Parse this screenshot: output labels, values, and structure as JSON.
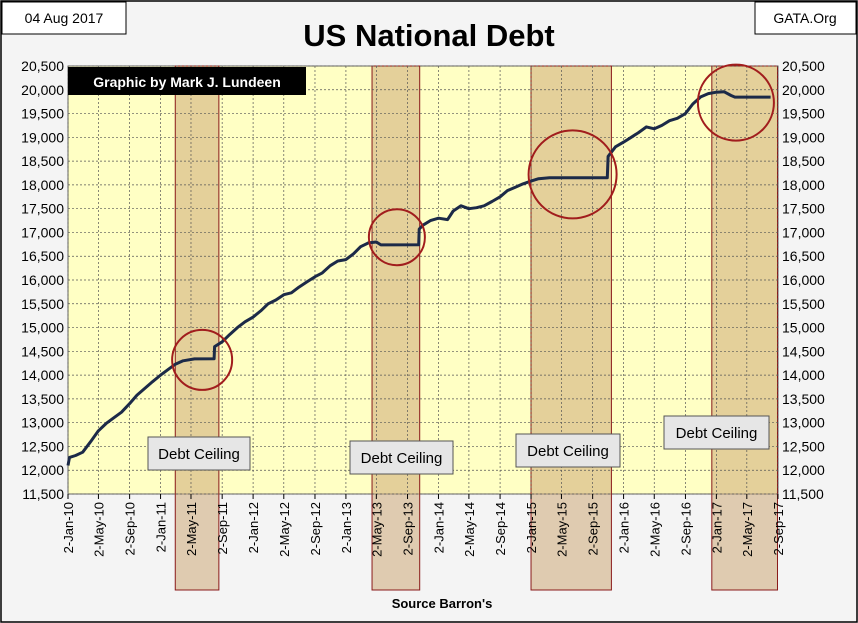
{
  "chart_data": {
    "type": "line",
    "title": "US National Debt",
    "date_label": "04 Aug 2017",
    "source_label": "GATA.Org",
    "credit": "Graphic by Mark J. Lundeen",
    "xlabel": "Source Barron's",
    "ylabel": "",
    "ylim": [
      11500,
      20500
    ],
    "yticks": [
      11500,
      12000,
      12500,
      13000,
      13500,
      14000,
      14500,
      15000,
      15500,
      16000,
      16500,
      17000,
      17500,
      18000,
      18500,
      19000,
      19500,
      20000,
      20500
    ],
    "ytick_labels": [
      "11,500",
      "12,000",
      "12,500",
      "13,000",
      "13,500",
      "14,000",
      "14,500",
      "15,000",
      "15,500",
      "16,000",
      "16,500",
      "17,000",
      "17,500",
      "18,000",
      "18,500",
      "19,000",
      "19,500",
      "20,000",
      "20,500"
    ],
    "xlim": [
      "2010-01-02",
      "2017-09-02"
    ],
    "xticks": [
      "2010-01-02",
      "2010-05-02",
      "2010-09-02",
      "2011-01-02",
      "2011-05-02",
      "2011-09-02",
      "2012-01-02",
      "2012-05-02",
      "2012-09-02",
      "2013-01-02",
      "2013-05-02",
      "2013-09-02",
      "2014-01-02",
      "2014-05-02",
      "2014-09-02",
      "2015-01-02",
      "2015-05-02",
      "2015-09-02",
      "2016-01-02",
      "2016-05-02",
      "2016-09-02",
      "2017-01-02",
      "2017-05-02",
      "2017-09-02"
    ],
    "xtick_labels": [
      "2-Jan-10",
      "2-May-10",
      "2-Sep-10",
      "2-Jan-11",
      "2-May-11",
      "2-Sep-11",
      "2-Jan-12",
      "2-May-12",
      "2-Sep-12",
      "2-Jan-13",
      "2-May-13",
      "2-Sep-13",
      "2-Jan-14",
      "2-May-14",
      "2-Sep-14",
      "2-Jan-15",
      "2-May-15",
      "2-Sep-15",
      "2-Jan-16",
      "2-May-16",
      "2-Sep-16",
      "2-Jan-17",
      "2-May-17",
      "2-Sep-17"
    ],
    "grid": true,
    "series": [
      {
        "name": "",
        "color": "#1c2a48",
        "points": [
          [
            "2010-01-02",
            12100
          ],
          [
            "2010-01-08",
            12270
          ],
          [
            "2010-02-01",
            12310
          ],
          [
            "2010-03-01",
            12380
          ],
          [
            "2010-04-01",
            12600
          ],
          [
            "2010-05-02",
            12830
          ],
          [
            "2010-06-01",
            12980
          ],
          [
            "2010-07-01",
            13100
          ],
          [
            "2010-08-01",
            13220
          ],
          [
            "2010-09-02",
            13400
          ],
          [
            "2010-10-01",
            13580
          ],
          [
            "2010-11-01",
            13720
          ],
          [
            "2010-12-01",
            13860
          ],
          [
            "2011-01-02",
            14000
          ],
          [
            "2011-02-01",
            14120
          ],
          [
            "2011-03-01",
            14230
          ],
          [
            "2011-04-01",
            14300
          ],
          [
            "2011-05-16",
            14340
          ],
          [
            "2011-08-01",
            14345
          ],
          [
            "2011-08-03",
            14600
          ],
          [
            "2011-09-02",
            14700
          ],
          [
            "2011-10-01",
            14850
          ],
          [
            "2011-11-01",
            15000
          ],
          [
            "2011-12-01",
            15120
          ],
          [
            "2012-01-02",
            15220
          ],
          [
            "2012-02-01",
            15350
          ],
          [
            "2012-03-01",
            15500
          ],
          [
            "2012-04-01",
            15580
          ],
          [
            "2012-05-02",
            15690
          ],
          [
            "2012-06-01",
            15730
          ],
          [
            "2012-07-01",
            15850
          ],
          [
            "2012-08-01",
            15960
          ],
          [
            "2012-09-02",
            16070
          ],
          [
            "2012-10-01",
            16150
          ],
          [
            "2012-11-01",
            16300
          ],
          [
            "2012-12-01",
            16400
          ],
          [
            "2013-01-02",
            16430
          ],
          [
            "2013-02-01",
            16550
          ],
          [
            "2013-03-01",
            16700
          ],
          [
            "2013-04-01",
            16780
          ],
          [
            "2013-05-02",
            16800
          ],
          [
            "2013-05-20",
            16738
          ],
          [
            "2013-10-16",
            16740
          ],
          [
            "2013-10-18",
            17070
          ],
          [
            "2013-11-01",
            17150
          ],
          [
            "2013-12-01",
            17250
          ],
          [
            "2014-01-02",
            17300
          ],
          [
            "2014-02-07",
            17270
          ],
          [
            "2014-03-01",
            17450
          ],
          [
            "2014-04-01",
            17560
          ],
          [
            "2014-05-02",
            17500
          ],
          [
            "2014-06-01",
            17520
          ],
          [
            "2014-07-01",
            17560
          ],
          [
            "2014-08-01",
            17650
          ],
          [
            "2014-09-02",
            17750
          ],
          [
            "2014-10-01",
            17880
          ],
          [
            "2014-11-01",
            17950
          ],
          [
            "2014-12-01",
            18020
          ],
          [
            "2015-01-02",
            18080
          ],
          [
            "2015-02-01",
            18130
          ],
          [
            "2015-03-16",
            18150
          ],
          [
            "2015-10-30",
            18152
          ],
          [
            "2015-11-02",
            18600
          ],
          [
            "2015-12-01",
            18800
          ],
          [
            "2016-01-02",
            18900
          ],
          [
            "2016-02-01",
            19000
          ],
          [
            "2016-03-01",
            19100
          ],
          [
            "2016-04-01",
            19220
          ],
          [
            "2016-05-02",
            19180
          ],
          [
            "2016-06-01",
            19250
          ],
          [
            "2016-07-01",
            19350
          ],
          [
            "2016-08-01",
            19400
          ],
          [
            "2016-09-02",
            19500
          ],
          [
            "2016-10-01",
            19700
          ],
          [
            "2016-11-01",
            19850
          ],
          [
            "2016-12-01",
            19920
          ],
          [
            "2017-01-02",
            19950
          ],
          [
            "2017-02-01",
            19960
          ],
          [
            "2017-03-01",
            19880
          ],
          [
            "2017-03-16",
            19846
          ],
          [
            "2017-08-04",
            19846
          ]
        ]
      }
    ],
    "highlight_periods": [
      {
        "start": "2011-03-01",
        "end": "2011-08-20",
        "label": "Debt Ceiling"
      },
      {
        "start": "2013-04-15",
        "end": "2013-10-20",
        "label": "Debt Ceiling"
      },
      {
        "start": "2015-01-02",
        "end": "2015-11-15",
        "label": "Debt Ceiling"
      },
      {
        "start": "2016-12-15",
        "end": "2017-08-31",
        "label": "Debt Ceiling"
      }
    ],
    "circles": [
      {
        "date": "2011-06-15",
        "value": 14320
      },
      {
        "date": "2013-07-22",
        "value": 16900
      },
      {
        "date": "2015-06-15",
        "value": 18220
      },
      {
        "date": "2017-03-20",
        "value": 19730
      }
    ]
  }
}
